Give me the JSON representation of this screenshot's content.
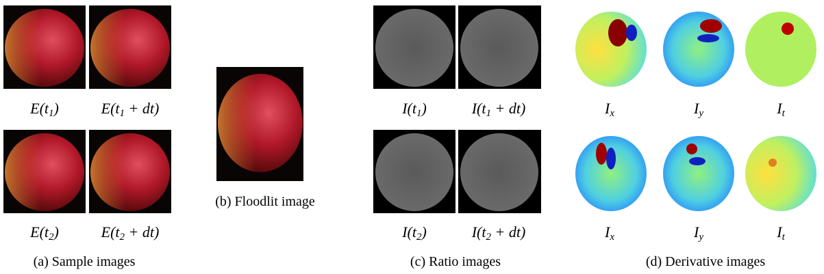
{
  "panels": [
    {
      "caption": "(a) Sample images",
      "labels": [
        {
          "main": "E(t",
          "sub": "1",
          "tail": ")"
        },
        {
          "main": "E(t",
          "sub": "1",
          "tail": " + dt)"
        },
        {
          "main": "E(t",
          "sub": "2",
          "tail": ")"
        },
        {
          "main": "E(t",
          "sub": "2",
          "tail": " + dt)"
        }
      ]
    },
    {
      "caption": "(b) Floodlit image",
      "labels": []
    },
    {
      "caption": "(c) Ratio images",
      "labels": [
        {
          "main": "I(t",
          "sub": "1",
          "tail": ")"
        },
        {
          "main": "I(t",
          "sub": "1",
          "tail": " + dt)"
        },
        {
          "main": "I(t",
          "sub": "2",
          "tail": ")"
        },
        {
          "main": "I(t",
          "sub": "2",
          "tail": " + dt)"
        }
      ]
    },
    {
      "caption": "(d) Derivative images",
      "labels": [
        {
          "main": "I",
          "sub": "x"
        },
        {
          "main": "I",
          "sub": "y"
        },
        {
          "main": "I",
          "sub": "t"
        },
        {
          "main": "I",
          "sub": "x"
        },
        {
          "main": "I",
          "sub": "y"
        },
        {
          "main": "I",
          "sub": "t"
        }
      ]
    }
  ]
}
